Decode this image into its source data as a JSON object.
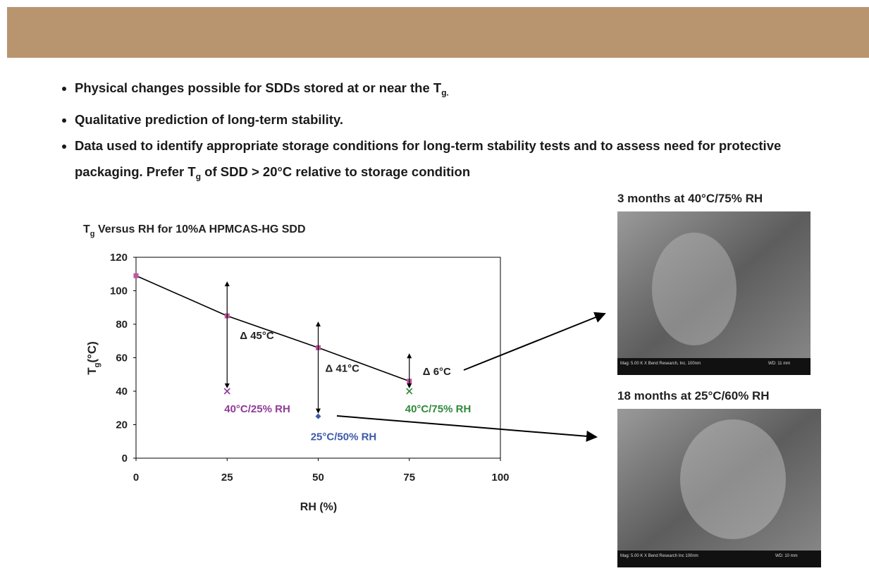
{
  "header": {
    "bullets": [
      [
        {
          "text": "Physical changes possible for SDDs stored at or near the T"
        },
        {
          "sub": "g."
        }
      ],
      [
        {
          "text": "Qualitative prediction of long-term stability."
        }
      ],
      [
        {
          "text": "Data used to identify appropriate storage conditions for long-term stability tests and to assess need for protective packaging. Prefer T"
        },
        {
          "sub": "g"
        },
        {
          "text": " of SDD > 20°C relative to storage condition"
        }
      ]
    ]
  },
  "chart_data": {
    "type": "scatter",
    "title": [
      {
        "text": "T"
      },
      {
        "sub": "g"
      },
      {
        "text": " Versus RH for 10%A HPMCAS-HG SDD"
      }
    ],
    "xlabel": "RH (%)",
    "ylabel": [
      {
        "text": "T"
      },
      {
        "sub": "g"
      },
      {
        "text": "(°C)"
      }
    ],
    "xlim": [
      0,
      100
    ],
    "xticks": [
      0,
      25,
      50,
      75,
      100
    ],
    "ylim": [
      0,
      120
    ],
    "yticks": [
      0,
      20,
      40,
      60,
      80,
      100,
      120
    ],
    "series": [
      {
        "x": [
          0,
          25,
          50,
          75
        ],
        "values": [
          109,
          85,
          66,
          46
        ],
        "color": "#c2569e",
        "marker": "square",
        "line_color": "#000000"
      },
      {
        "x": [
          25,
          50,
          75
        ],
        "values": [
          40,
          25,
          40
        ],
        "colors": [
          "#8e3b96",
          "#3b5aa8",
          "#2f8a3c"
        ],
        "markers": [
          "x",
          "diamond",
          "x"
        ],
        "labels": [
          "40°C/25% RH",
          "25°C/50% RH",
          "40°C/75% RH"
        ]
      }
    ],
    "annotations": [
      "Δ 45°C",
      "Δ 41°C",
      "Δ 6°C"
    ]
  },
  "images": [
    {
      "caption": "3 months at 40°C/75% RH",
      "footer_left": "Mag: 5.00 K X   Bend Research, Inc.   100nm",
      "footer_right": "WD: 11 mm"
    },
    {
      "caption": "18 months at 25°C/60% RH",
      "footer_left": "Mag: 5.00 K X   Bend Research Inc   100nm",
      "footer_right": "WD: 10 mm"
    }
  ]
}
